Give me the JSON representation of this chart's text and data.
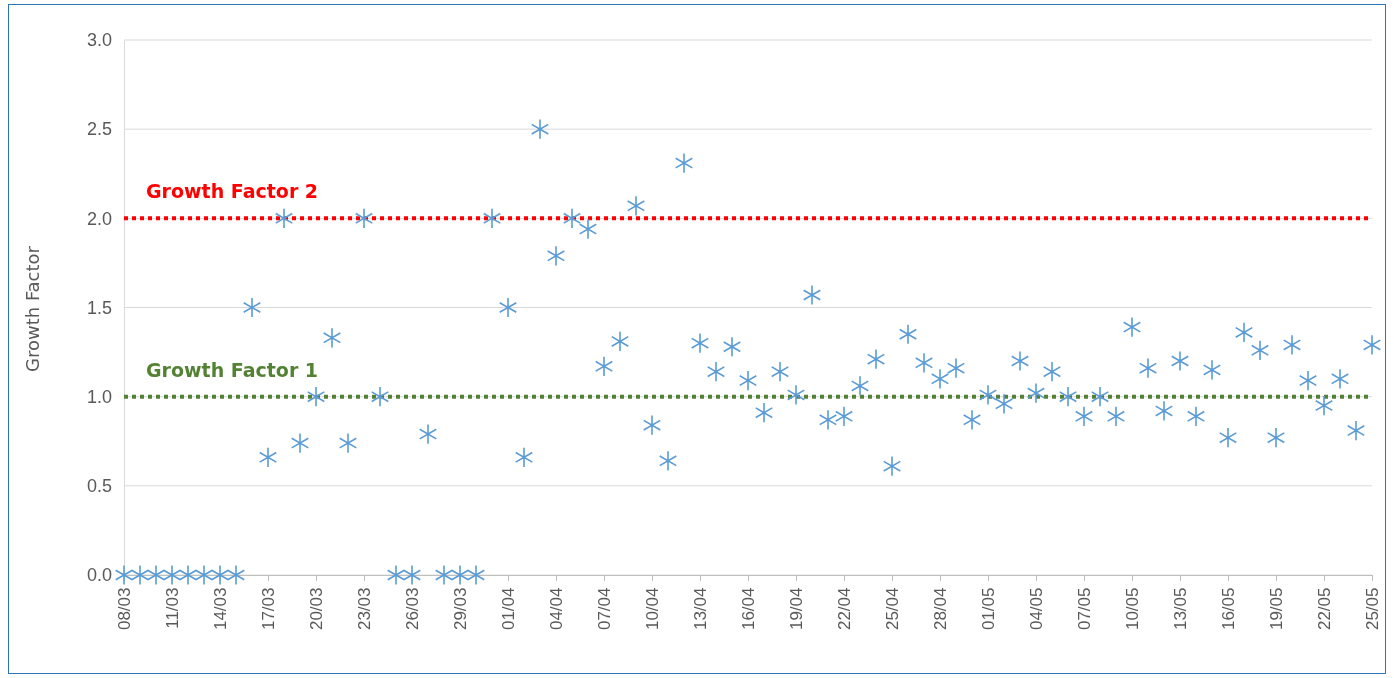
{
  "chart_data": {
    "type": "scatter",
    "ylabel": "Growth Factor",
    "marker": "cross",
    "grid": "y",
    "x": [
      "--03-08",
      "--03-09",
      "--03-10",
      "--03-11",
      "--03-12",
      "--03-13",
      "--03-14",
      "--03-15",
      "--03-16",
      "--03-17",
      "--03-18",
      "--03-19",
      "--03-20",
      "--03-21",
      "--03-22",
      "--03-23",
      "--03-24",
      "--03-25",
      "--03-26",
      "--03-27",
      "--03-28",
      "--03-29",
      "--03-30",
      "--03-31",
      "--04-01",
      "--04-02",
      "--04-03",
      "--04-04",
      "--04-05",
      "--04-06",
      "--04-07",
      "--04-08",
      "--04-09",
      "--04-10",
      "--04-11",
      "--04-12",
      "--04-13",
      "--04-14",
      "--04-15",
      "--04-16",
      "--04-17",
      "--04-18",
      "--04-19",
      "--04-20",
      "--04-21",
      "--04-22",
      "--04-23",
      "--04-24",
      "--04-25",
      "--04-26",
      "--04-27",
      "--04-28",
      "--04-29",
      "--04-30",
      "--05-01",
      "--05-02",
      "--05-03",
      "--05-04",
      "--05-05",
      "--05-06",
      "--05-07",
      "--05-08",
      "--05-09",
      "--05-10",
      "--05-11",
      "--05-12",
      "--05-13",
      "--05-14",
      "--05-15",
      "--05-16",
      "--05-17",
      "--05-18",
      "--05-19",
      "--05-20",
      "--05-21",
      "--05-22",
      "--05-23",
      "--05-24",
      "--05-25"
    ],
    "series": [
      {
        "color": "#5b9bd5",
        "values": [
          0,
          0,
          0,
          0,
          0,
          0,
          0,
          0,
          1.5,
          0.66,
          2.0,
          0.74,
          1.0,
          1.33,
          0.74,
          2.0,
          1.0,
          0,
          0,
          0.79,
          0,
          0,
          0,
          2.0,
          1.5,
          0.66,
          2.5,
          1.79,
          2.0,
          1.94,
          1.17,
          1.31,
          2.07,
          0.84,
          0.64,
          2.31,
          1.3,
          1.14,
          1.28,
          1.09,
          0.91,
          1.14,
          1.01,
          1.57,
          0.87,
          0.89,
          1.06,
          1.21,
          0.61,
          1.35,
          1.19,
          1.1,
          1.16,
          0.87,
          1.01,
          0.96,
          1.2,
          1.02,
          1.14,
          1.0,
          0.89,
          1.0,
          0.89,
          1.39,
          1.16,
          0.92,
          1.2,
          0.89,
          1.15,
          0.77,
          1.36,
          1.26,
          0.77,
          1.29,
          1.09,
          0.95,
          1.1,
          0.81,
          1.29
        ]
      }
    ],
    "xlim": [
      "--03-08",
      "--05-25"
    ],
    "xticks": [
      {
        "value": "--03-08",
        "label": "08/03"
      },
      {
        "value": "--03-11",
        "label": "11/03"
      },
      {
        "value": "--03-14",
        "label": "14/03"
      },
      {
        "value": "--03-17",
        "label": "17/03"
      },
      {
        "value": "--03-20",
        "label": "20/03"
      },
      {
        "value": "--03-23",
        "label": "23/03"
      },
      {
        "value": "--03-26",
        "label": "26/03"
      },
      {
        "value": "--03-29",
        "label": "29/03"
      },
      {
        "value": "--04-01",
        "label": "01/04"
      },
      {
        "value": "--04-04",
        "label": "04/04"
      },
      {
        "value": "--04-07",
        "label": "07/04"
      },
      {
        "value": "--04-10",
        "label": "10/04"
      },
      {
        "value": "--04-13",
        "label": "13/04"
      },
      {
        "value": "--04-16",
        "label": "16/04"
      },
      {
        "value": "--04-19",
        "label": "19/04"
      },
      {
        "value": "--04-22",
        "label": "22/04"
      },
      {
        "value": "--04-25",
        "label": "25/04"
      },
      {
        "value": "--04-28",
        "label": "28/04"
      },
      {
        "value": "--05-01",
        "label": "01/05"
      },
      {
        "value": "--05-04",
        "label": "04/05"
      },
      {
        "value": "--05-07",
        "label": "07/05"
      },
      {
        "value": "--05-10",
        "label": "10/05"
      },
      {
        "value": "--05-13",
        "label": "13/05"
      },
      {
        "value": "--05-16",
        "label": "16/05"
      },
      {
        "value": "--05-19",
        "label": "19/05"
      },
      {
        "value": "--05-22",
        "label": "22/05"
      },
      {
        "value": "--05-25",
        "label": "25/05"
      }
    ],
    "ylim": [
      0,
      3
    ],
    "yticks": [
      {
        "value": 0,
        "label": "0.0"
      },
      {
        "value": 0.5,
        "label": "0.5"
      },
      {
        "value": 1,
        "label": "1.0"
      },
      {
        "value": 1.5,
        "label": "1.5"
      },
      {
        "value": 2,
        "label": "2.0"
      },
      {
        "value": 2.5,
        "label": "2.5"
      },
      {
        "value": 3,
        "label": "3.0"
      }
    ],
    "ref_lines": [
      {
        "axis": "y",
        "value": 2,
        "label": "Growth Factor 2",
        "color": "#ff0000",
        "line_style": "dotted"
      },
      {
        "axis": "y",
        "value": 1,
        "label": "Growth Factor 1",
        "color": "#548235",
        "line_style": "dotted"
      }
    ]
  }
}
